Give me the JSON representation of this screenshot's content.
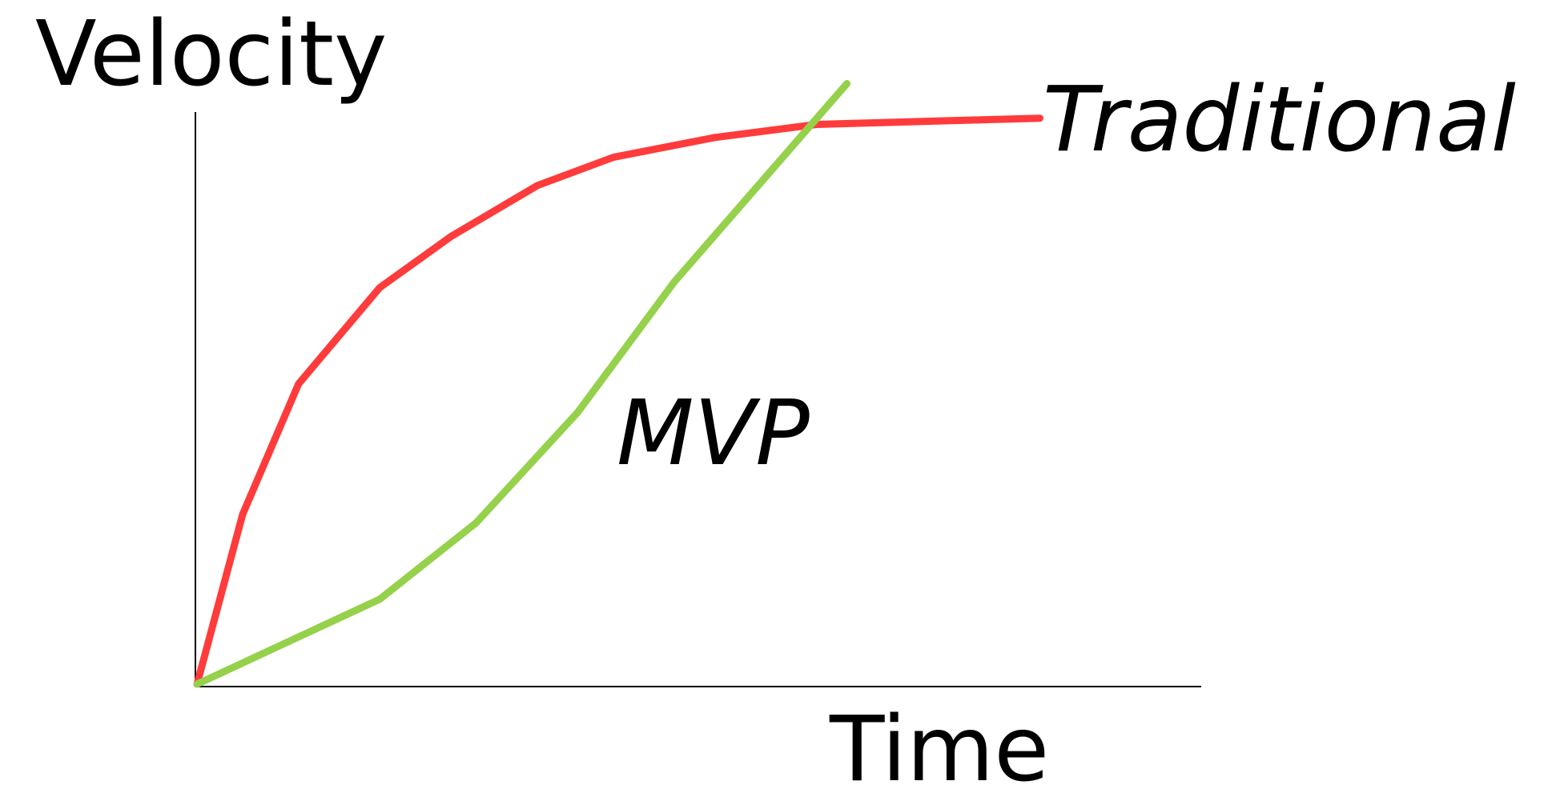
{
  "chart_data": {
    "type": "line",
    "xlabel": "Time",
    "ylabel": "Velocity",
    "xlim": [
      0,
      100
    ],
    "ylim": [
      0,
      100
    ],
    "grid": false,
    "axis_ticks": false,
    "series": [
      {
        "name": "Traditional",
        "color": "#ff3b3b",
        "points": [
          {
            "x": 0,
            "y": 0
          },
          {
            "x": 4.5,
            "y": 30
          },
          {
            "x": 10,
            "y": 53
          },
          {
            "x": 18,
            "y": 70
          },
          {
            "x": 25,
            "y": 79
          },
          {
            "x": 33.5,
            "y": 88
          },
          {
            "x": 41,
            "y": 93
          },
          {
            "x": 51,
            "y": 96.5
          },
          {
            "x": 61,
            "y": 98.8
          },
          {
            "x": 83,
            "y": 99.9
          }
        ]
      },
      {
        "name": "MVP",
        "color": "#95d14a",
        "points": [
          {
            "x": 0,
            "y": 0
          },
          {
            "x": 18,
            "y": 15
          },
          {
            "x": 27.5,
            "y": 28.5
          },
          {
            "x": 37.5,
            "y": 48
          },
          {
            "x": 47,
            "y": 71
          },
          {
            "x": 64,
            "y": 106
          }
        ]
      }
    ]
  }
}
